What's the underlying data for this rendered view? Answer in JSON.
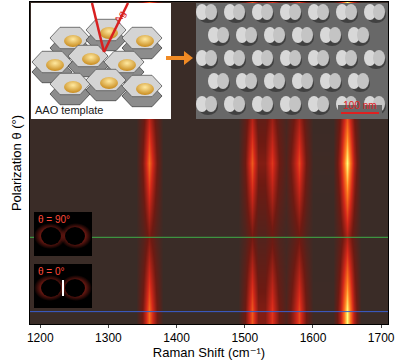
{
  "chart_data": {
    "type": "heatmap",
    "x_label": "Raman Shift (cm⁻¹)",
    "y_label": "Polarization θ (°)",
    "x": [
      1180,
      1340,
      1350,
      1360,
      1370,
      1380,
      1490,
      1500,
      1510,
      1520,
      1530,
      1540,
      1550,
      1560,
      1570,
      1580,
      1590,
      1600,
      1630,
      1640,
      1650,
      1660,
      1670,
      1710
    ],
    "y": [
      0,
      45,
      90,
      135,
      180,
      225,
      270,
      315,
      360
    ],
    "z": [
      [
        0,
        0,
        0.3,
        0.7,
        0.3,
        0,
        0,
        0.25,
        0.65,
        0.3,
        0.3,
        0.55,
        0.25,
        0.1,
        0.35,
        0.6,
        0.25,
        0.02,
        0.02,
        0.4,
        1.0,
        0.4,
        0,
        0
      ],
      [
        0,
        0,
        0.21,
        0.49,
        0.21,
        0,
        0,
        0.18,
        0.46,
        0.21,
        0.21,
        0.39,
        0.18,
        0.07,
        0.25,
        0.42,
        0.18,
        0.01,
        0.01,
        0.28,
        0.7,
        0.28,
        0,
        0
      ],
      [
        0,
        0,
        0.12,
        0.28,
        0.12,
        0,
        0,
        0.1,
        0.26,
        0.12,
        0.12,
        0.22,
        0.1,
        0.04,
        0.14,
        0.24,
        0.1,
        0.01,
        0.01,
        0.16,
        0.4,
        0.16,
        0,
        0
      ],
      [
        0,
        0,
        0.21,
        0.49,
        0.21,
        0,
        0,
        0.18,
        0.46,
        0.21,
        0.21,
        0.39,
        0.18,
        0.07,
        0.25,
        0.42,
        0.18,
        0.01,
        0.01,
        0.28,
        0.7,
        0.28,
        0,
        0
      ],
      [
        0,
        0,
        0.3,
        0.7,
        0.3,
        0,
        0,
        0.25,
        0.65,
        0.3,
        0.3,
        0.55,
        0.25,
        0.1,
        0.35,
        0.6,
        0.25,
        0.02,
        0.02,
        0.4,
        1.0,
        0.4,
        0,
        0
      ],
      [
        0,
        0,
        0.21,
        0.49,
        0.21,
        0,
        0,
        0.18,
        0.46,
        0.21,
        0.21,
        0.39,
        0.18,
        0.07,
        0.25,
        0.42,
        0.18,
        0.01,
        0.01,
        0.28,
        0.7,
        0.28,
        0,
        0
      ],
      [
        0,
        0,
        0.12,
        0.28,
        0.12,
        0,
        0,
        0.1,
        0.26,
        0.12,
        0.12,
        0.22,
        0.1,
        0.04,
        0.14,
        0.24,
        0.1,
        0.01,
        0.01,
        0.16,
        0.4,
        0.16,
        0,
        0
      ],
      [
        0,
        0,
        0.21,
        0.49,
        0.21,
        0,
        0,
        0.18,
        0.46,
        0.21,
        0.21,
        0.39,
        0.18,
        0.07,
        0.25,
        0.42,
        0.18,
        0.01,
        0.01,
        0.28,
        0.7,
        0.28,
        0,
        0
      ],
      [
        0,
        0,
        0.3,
        0.7,
        0.3,
        0,
        0,
        0.25,
        0.65,
        0.3,
        0.3,
        0.55,
        0.25,
        0.1,
        0.35,
        0.6,
        0.25,
        0.02,
        0.02,
        0.4,
        1.0,
        0.4,
        0,
        0
      ]
    ],
    "xlim": [
      1185,
      1710
    ],
    "xticks": [
      1200,
      1300,
      1400,
      1500,
      1600,
      1700
    ],
    "ylim": [
      -15,
      375
    ],
    "tick_labels": "x",
    "grid": false,
    "hlines": [
      {
        "y": 90,
        "color": "#3fae49"
      },
      {
        "y": 0,
        "color": "#3a5fcd"
      }
    ],
    "annotations": {
      "laser": "Ag",
      "template": "AAO template",
      "scale_bar": "100 nm",
      "inset_90": "θ = 90°",
      "inset_0": "θ = 0°"
    }
  }
}
